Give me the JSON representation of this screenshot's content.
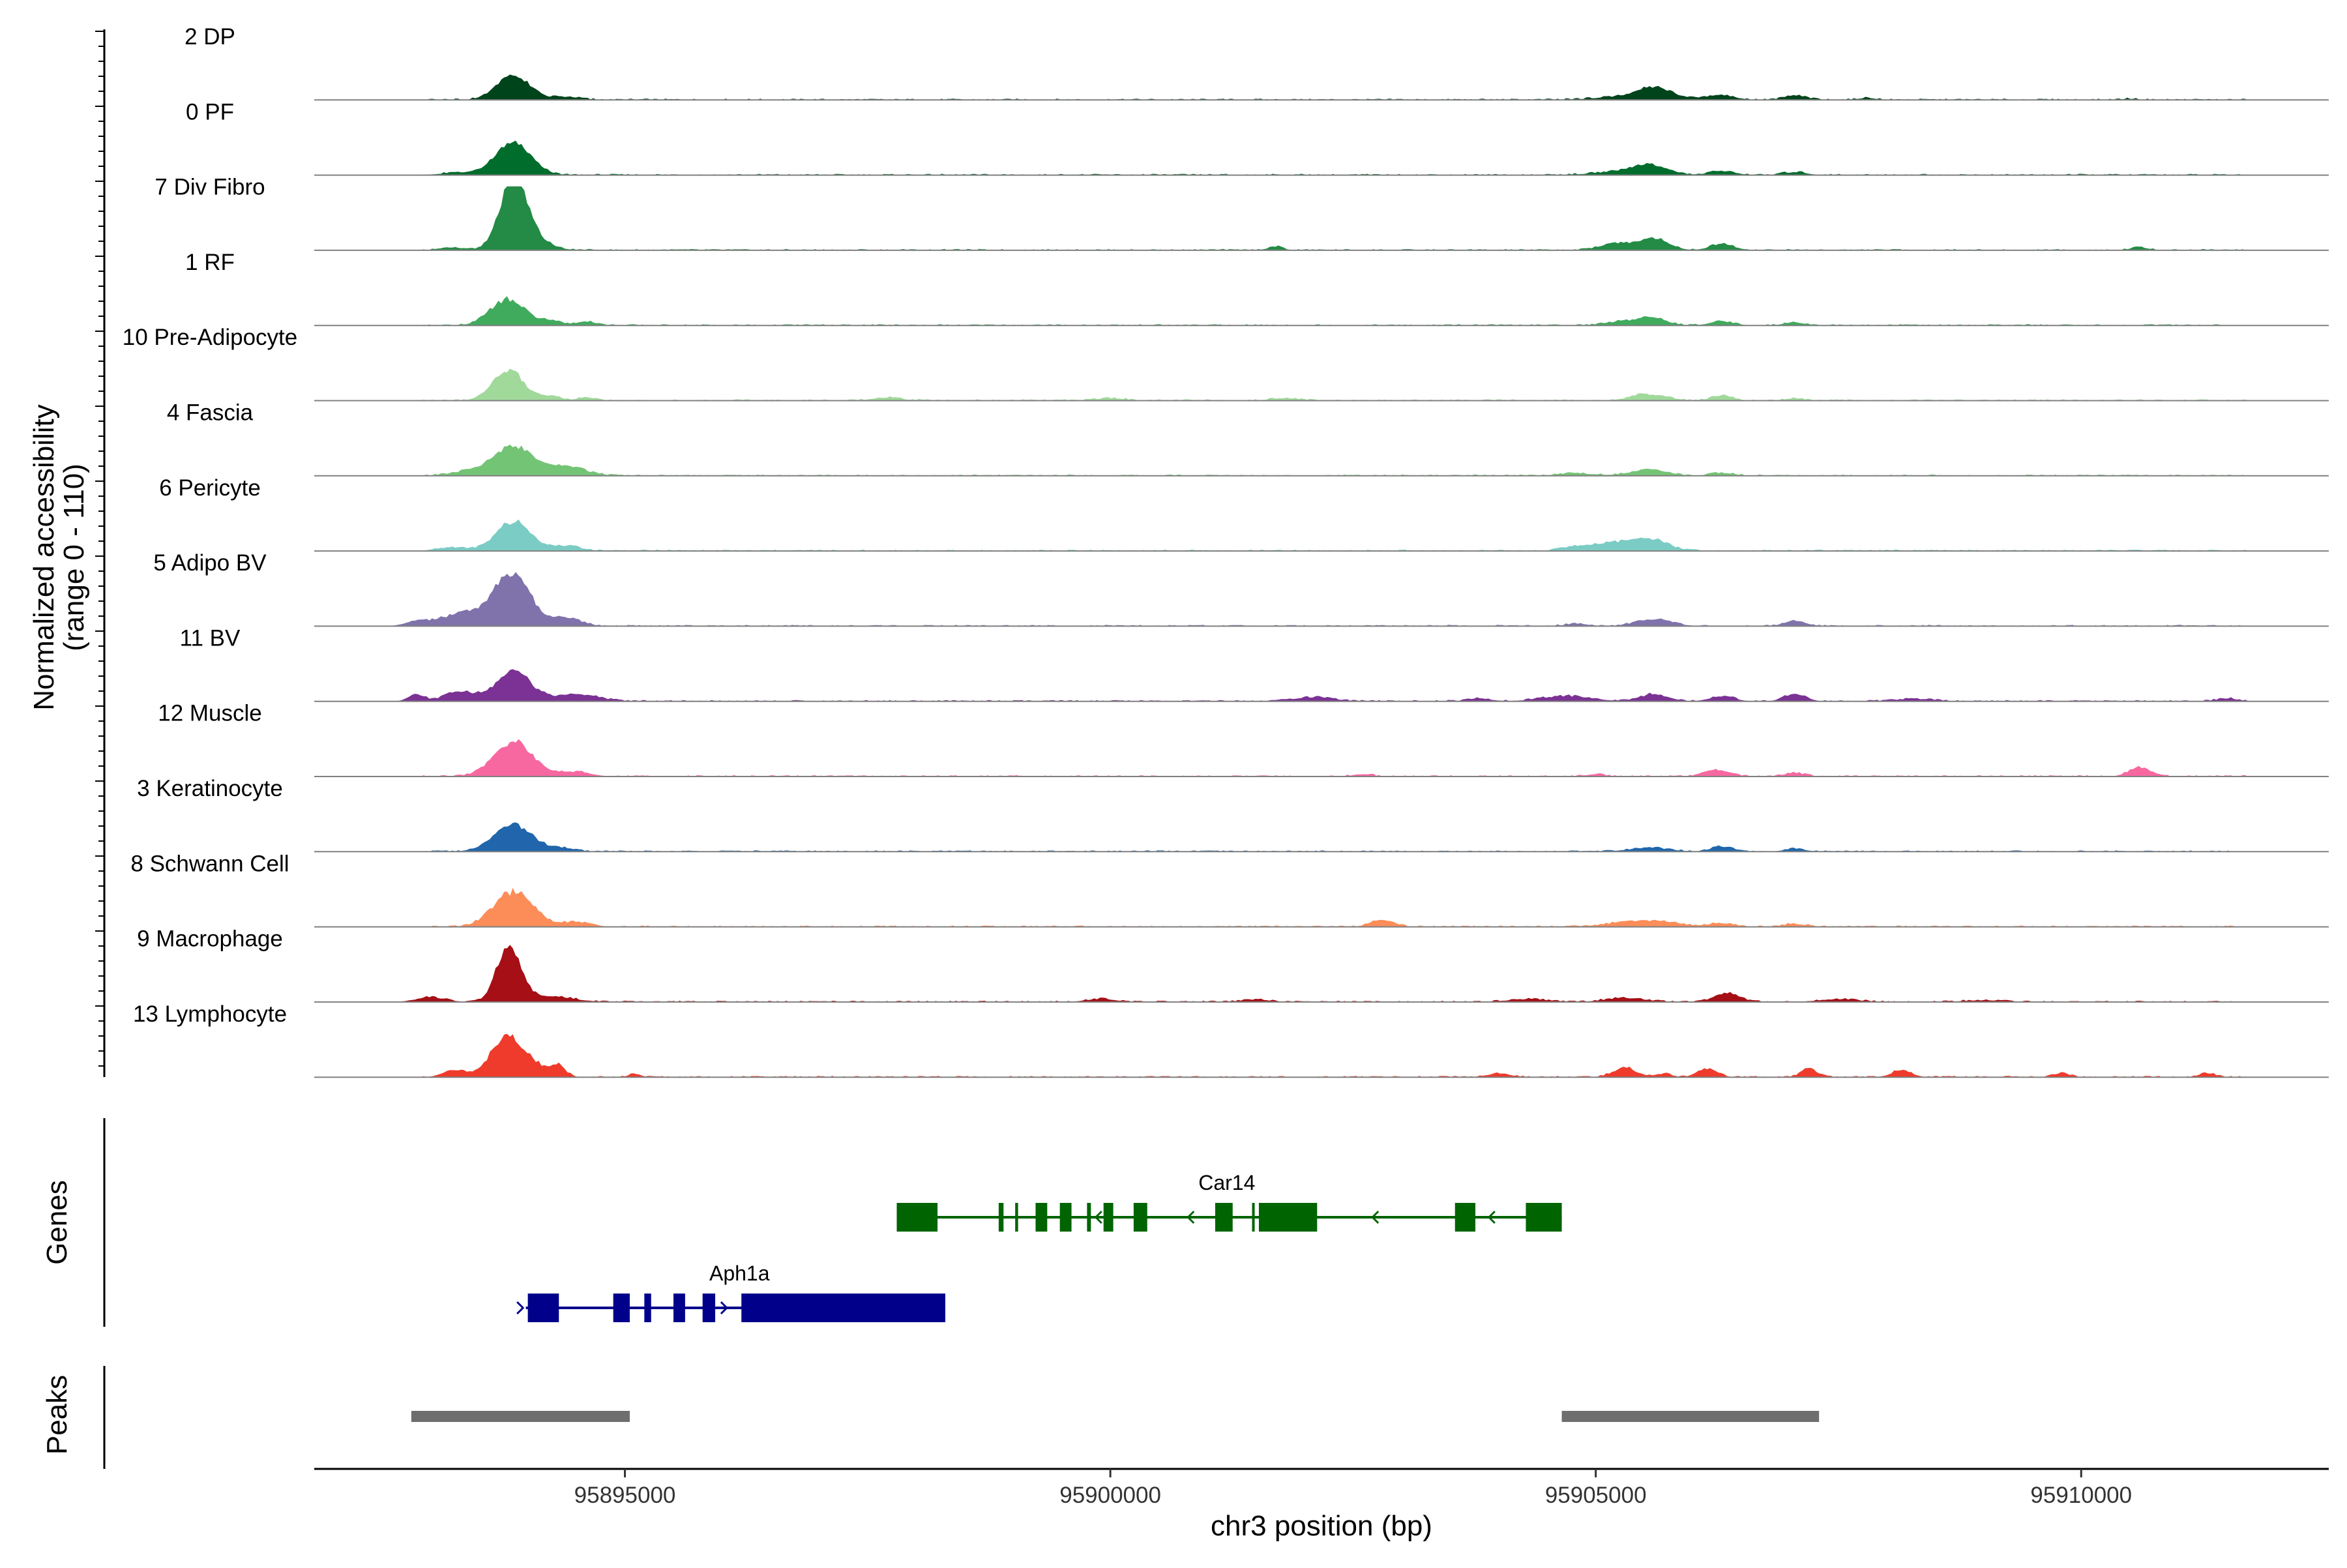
{
  "chart_data": {
    "type": "area",
    "ylabel_line1": "Normalized accessibility",
    "ylabel_line2": "(range 0 - 110)",
    "ylim": [
      0,
      110
    ],
    "xlabel": "chr3 position (bp)",
    "xlim": [
      95891800,
      95912550
    ],
    "x_ticks": [
      {
        "value": 95895000,
        "label": "95895000"
      },
      {
        "value": 95900000,
        "label": "95900000"
      },
      {
        "value": 95905000,
        "label": "95905000"
      },
      {
        "value": 95910000,
        "label": "95910000"
      }
    ],
    "genes_label": "Genes",
    "peaks_label": "Peaks",
    "series": [
      {
        "name": "2 DP",
        "color": "#00441b",
        "peaks": [
          [
            95893850,
            42,
            170
          ],
          [
            95894400,
            5,
            150
          ],
          [
            95905500,
            9,
            350
          ],
          [
            95905600,
            14,
            150
          ],
          [
            95906300,
            8,
            130
          ],
          [
            95907050,
            7,
            120
          ],
          [
            95907800,
            3,
            100
          ],
          [
            95910500,
            2,
            80
          ]
        ]
      },
      {
        "name": "0 PF",
        "color": "#006d2c",
        "peaks": [
          [
            95893850,
            55,
            180
          ],
          [
            95893300,
            4,
            200
          ],
          [
            95905550,
            17,
            180
          ],
          [
            95905200,
            5,
            250
          ],
          [
            95906300,
            7,
            130
          ],
          [
            95907050,
            5,
            120
          ]
        ]
      },
      {
        "name": "7 Div Fibro",
        "color": "#238b45",
        "peaks": [
          [
            95893850,
            100,
            130
          ],
          [
            95893950,
            30,
            200
          ],
          [
            95893200,
            5,
            120
          ],
          [
            95901700,
            6,
            80
          ],
          [
            95905200,
            12,
            160
          ],
          [
            95905600,
            20,
            150
          ],
          [
            95906300,
            11,
            120
          ],
          [
            95910600,
            5,
            90
          ]
        ]
      },
      {
        "name": "1 RF",
        "color": "#41ab5d",
        "peaks": [
          [
            95893800,
            45,
            180
          ],
          [
            95894250,
            8,
            100
          ],
          [
            95894600,
            7,
            100
          ],
          [
            95905550,
            14,
            160
          ],
          [
            95905200,
            5,
            150
          ],
          [
            95906300,
            7,
            120
          ],
          [
            95907050,
            5,
            110
          ]
        ]
      },
      {
        "name": "10 Pre-Adipocyte",
        "color": "#a1d99b",
        "peaks": [
          [
            95893800,
            52,
            160
          ],
          [
            95894250,
            8,
            90
          ],
          [
            95894600,
            6,
            90
          ],
          [
            95897700,
            5,
            150
          ],
          [
            95900000,
            4,
            150
          ],
          [
            95901800,
            4,
            150
          ],
          [
            95905550,
            11,
            180
          ],
          [
            95906300,
            9,
            110
          ],
          [
            95907050,
            4,
            90
          ]
        ]
      },
      {
        "name": "4 Fascia",
        "color": "#74c476",
        "peaks": [
          [
            95893850,
            50,
            200
          ],
          [
            95893400,
            7,
            200
          ],
          [
            95894400,
            15,
            200
          ],
          [
            95905550,
            11,
            180
          ],
          [
            95904800,
            4,
            200
          ],
          [
            95906300,
            5,
            120
          ]
        ]
      },
      {
        "name": "6 Pericyte",
        "color": "#7bccc4",
        "peaks": [
          [
            95893850,
            50,
            180
          ],
          [
            95893200,
            6,
            150
          ],
          [
            95894400,
            8,
            150
          ],
          [
            95905300,
            16,
            300
          ],
          [
            95905600,
            11,
            150
          ],
          [
            95904800,
            5,
            150
          ]
        ]
      },
      {
        "name": "5 Adipo BV",
        "color": "#8073ac",
        "peaks": [
          [
            95893850,
            85,
            180
          ],
          [
            95893400,
            22,
            300
          ],
          [
            95894400,
            14,
            150
          ],
          [
            95892850,
            6,
            100
          ],
          [
            95905600,
            12,
            180
          ],
          [
            95904800,
            4,
            120
          ],
          [
            95907050,
            9,
            110
          ]
        ]
      },
      {
        "name": "11 BV",
        "color": "#7b3294",
        "peaks": [
          [
            95893850,
            50,
            180
          ],
          [
            95893300,
            16,
            150
          ],
          [
            95892850,
            12,
            80
          ],
          [
            95894500,
            12,
            220
          ],
          [
            95902100,
            7,
            200
          ],
          [
            95903800,
            5,
            120
          ],
          [
            95904700,
            9,
            250
          ],
          [
            95905600,
            12,
            150
          ],
          [
            95906300,
            9,
            120
          ],
          [
            95907050,
            12,
            110
          ],
          [
            95908300,
            4,
            200
          ],
          [
            95911500,
            5,
            100
          ]
        ]
      },
      {
        "name": "12 Muscle",
        "color": "#f768a1",
        "peaks": [
          [
            95893850,
            60,
            200
          ],
          [
            95894500,
            8,
            150
          ],
          [
            95902600,
            4,
            100
          ],
          [
            95906250,
            11,
            130
          ],
          [
            95907050,
            6,
            110
          ],
          [
            95910600,
            16,
            110
          ],
          [
            95905000,
            4,
            100
          ]
        ]
      },
      {
        "name": "3 Keratinocyte",
        "color": "#2166ac",
        "peaks": [
          [
            95893850,
            47,
            200
          ],
          [
            95894400,
            5,
            120
          ],
          [
            95905550,
            7,
            200
          ],
          [
            95906300,
            9,
            110
          ],
          [
            95907050,
            5,
            110
          ]
        ]
      },
      {
        "name": "8 Schwann Cell",
        "color": "#fc8d59",
        "peaks": [
          [
            95893850,
            60,
            200
          ],
          [
            95894500,
            8,
            150
          ],
          [
            95902800,
            12,
            120
          ],
          [
            95905500,
            11,
            300
          ],
          [
            95906300,
            6,
            120
          ],
          [
            95907050,
            5,
            110
          ]
        ]
      },
      {
        "name": "9 Macrophage",
        "color": "#a50f15",
        "peaks": [
          [
            95893800,
            95,
            120
          ],
          [
            95894200,
            10,
            250
          ],
          [
            95893000,
            8,
            150
          ],
          [
            95899900,
            5,
            150
          ],
          [
            95901500,
            4,
            150
          ],
          [
            95904300,
            5,
            200
          ],
          [
            95905300,
            7,
            200
          ],
          [
            95906350,
            15,
            130
          ],
          [
            95907500,
            5,
            200
          ],
          [
            95909000,
            3,
            200
          ]
        ]
      },
      {
        "name": "13 Lymphocyte",
        "color": "#ef3b2c",
        "peaks": [
          [
            95893800,
            72,
            170
          ],
          [
            95894300,
            22,
            80
          ],
          [
            95893250,
            12,
            120
          ],
          [
            95894100,
            10,
            80
          ],
          [
            95895100,
            6,
            60
          ],
          [
            95905300,
            16,
            120
          ],
          [
            95904000,
            6,
            120
          ],
          [
            95906150,
            15,
            100
          ],
          [
            95907200,
            15,
            80
          ],
          [
            95908150,
            12,
            100
          ],
          [
            95909800,
            7,
            80
          ],
          [
            95911300,
            7,
            80
          ],
          [
            95905700,
            6,
            80
          ]
        ]
      }
    ],
    "genes": [
      {
        "name": "Car14",
        "strand": "-",
        "color": "#006400",
        "start": 95897800,
        "end": 95904650,
        "exons": [
          [
            95897800,
            95898220
          ],
          [
            95898850,
            95898900
          ],
          [
            95899020,
            95899050
          ],
          [
            95899230,
            95899350
          ],
          [
            95899480,
            95899600
          ],
          [
            95899760,
            95899800
          ],
          [
            95899930,
            95900030
          ],
          [
            95900240,
            95900380
          ],
          [
            95901080,
            95901260
          ],
          [
            95901460,
            95901480
          ],
          [
            95901530,
            95902130
          ],
          [
            95903550,
            95903760
          ],
          [
            95904280,
            95904650
          ]
        ],
        "arrows": [
          95899850,
          95900800,
          95902700,
          95903900
        ]
      },
      {
        "name": "Aph1a",
        "strand": "+",
        "color": "#00008b",
        "start": 95893980,
        "end": 95898300,
        "exons": [
          [
            95894000,
            95894320
          ],
          [
            95894880,
            95895050
          ],
          [
            95895200,
            95895270
          ],
          [
            95895500,
            95895620
          ],
          [
            95895800,
            95895930
          ],
          [
            95896200,
            95898300
          ]
        ],
        "arrows": [
          95893950,
          95896050
        ]
      }
    ],
    "peaks": [
      [
        95892800,
        95895050
      ],
      [
        95904650,
        95907300
      ]
    ]
  }
}
